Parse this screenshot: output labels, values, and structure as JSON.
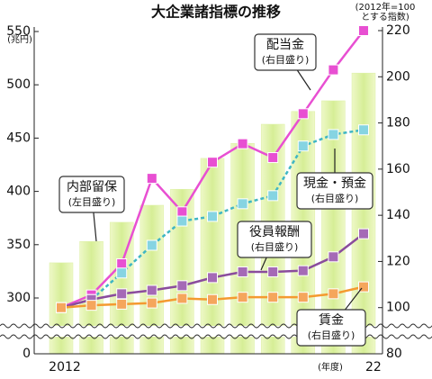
{
  "chart_data": {
    "type": "bar-line",
    "title": "大企業諸指標の推移",
    "y_unit": "(兆円)",
    "y2_unit": [
      "(2012年=100",
      "とする指数)"
    ],
    "x_unit": "(年度)",
    "categories": [
      "2012",
      null,
      null,
      null,
      null,
      null,
      null,
      null,
      null,
      null,
      "22"
    ],
    "ylim": [
      0,
      550
    ],
    "yticks": [
      0,
      300,
      350,
      400,
      450,
      500,
      550
    ],
    "y_break": true,
    "y2lim": [
      80,
      220
    ],
    "y2ticks": [
      80,
      100,
      120,
      140,
      160,
      180,
      200,
      220
    ],
    "series": [
      {
        "name": "内部留保",
        "note": "(左目盛り)",
        "type": "bar",
        "axis": "y",
        "color": "#dcf0a4",
        "values": [
          333,
          353,
          371,
          387,
          402,
          431,
          445,
          463,
          475,
          485,
          511
        ]
      },
      {
        "name": "配当金",
        "note": "(右目盛り)",
        "type": "line",
        "axis": "y2",
        "color": "#e84fd2",
        "marker_color": "#e84fd2",
        "values": [
          100,
          105.5,
          119,
          156,
          141.5,
          163,
          171,
          165,
          184,
          203,
          220
        ]
      },
      {
        "name": "現金・預金",
        "note": "(右目盛り)",
        "type": "line",
        "axis": "y2",
        "color": "#3fb6c4",
        "marker_color": "#86d4e2",
        "dash": true,
        "values": [
          100,
          103.5,
          115,
          127,
          137.5,
          139.5,
          145,
          148.5,
          170,
          175,
          177
        ]
      },
      {
        "name": "役員報酬",
        "note": "(右目盛り)",
        "type": "line",
        "axis": "y2",
        "color": "#8a4c9c",
        "marker_color": "#a56ab6",
        "values": [
          100,
          103.5,
          106,
          107.5,
          109.5,
          113,
          115.5,
          115.5,
          116,
          122,
          132
        ]
      },
      {
        "name": "賃金",
        "note": "(右目盛り)",
        "type": "line",
        "axis": "y2",
        "color": "#f49a30",
        "marker_color": "#f5a65c",
        "values": [
          100,
          101,
          101.5,
          102,
          104,
          103.5,
          104.5,
          104.5,
          104.5,
          106,
          109
        ]
      }
    ]
  }
}
